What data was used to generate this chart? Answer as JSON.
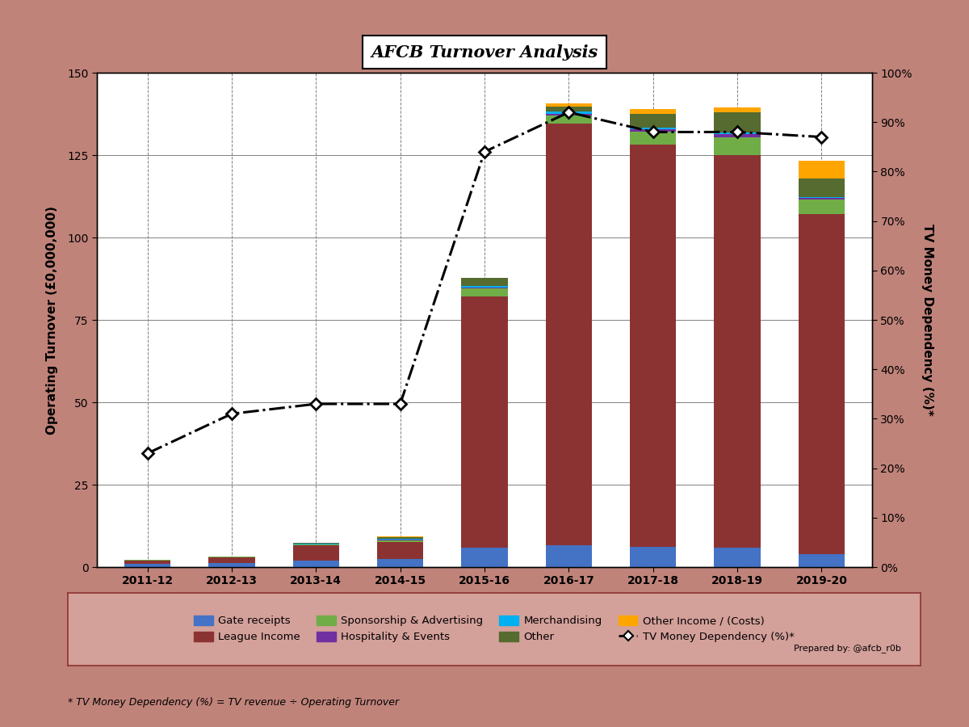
{
  "title": "AFCB Turnover Analysis",
  "years": [
    "2011-12",
    "2012-13",
    "2013-14",
    "2014-15",
    "2015-16",
    "2016-17",
    "2017-18",
    "2018-19",
    "2019-20"
  ],
  "gate_receipts": [
    1.0,
    1.2,
    2.0,
    2.5,
    6.0,
    6.5,
    6.2,
    6.0,
    4.0
  ],
  "league_income": [
    1.0,
    1.8,
    4.5,
    5.0,
    76.0,
    128.0,
    122.0,
    119.0,
    103.0
  ],
  "sponsorship_advert": [
    0.1,
    0.1,
    0.3,
    0.5,
    2.5,
    2.5,
    4.0,
    5.5,
    4.5
  ],
  "hospitality_events": [
    0.05,
    0.05,
    0.1,
    0.3,
    0.4,
    0.6,
    0.6,
    0.8,
    0.4
  ],
  "merchandising": [
    0.05,
    0.05,
    0.1,
    0.2,
    0.4,
    0.6,
    0.6,
    0.6,
    0.4
  ],
  "other": [
    0.1,
    0.1,
    0.3,
    0.5,
    2.5,
    1.5,
    4.0,
    6.0,
    5.5
  ],
  "other_income_costs": [
    0.0,
    0.0,
    0.0,
    0.3,
    0.0,
    1.0,
    1.5,
    1.5,
    5.5
  ],
  "tv_dependency_pct": [
    23.0,
    31.0,
    33.0,
    33.0,
    84.0,
    92.0,
    88.0,
    88.0,
    87.0
  ],
  "colors": {
    "gate_receipts": "#4472C4",
    "league_income": "#8B3333",
    "sponsorship_advert": "#70AD47",
    "hospitality_events": "#7030A0",
    "merchandising": "#00B0F0",
    "other": "#556B2F",
    "other_income_costs": "#FFA500"
  },
  "ylabel_left": "Operating Turnover (£0,000,000)",
  "ylabel_right": "TV Money Dependency (%)*",
  "ylim_left": [
    0,
    150
  ],
  "ylim_right": [
    0,
    100
  ],
  "yticks_left": [
    0,
    25,
    50,
    75,
    100,
    125,
    150
  ],
  "yticks_right": [
    0,
    10,
    20,
    30,
    40,
    50,
    60,
    70,
    80,
    90,
    100
  ],
  "legend_items": [
    {
      "label": "Gate receipts",
      "color": "#4472C4",
      "type": "patch"
    },
    {
      "label": "League Income",
      "color": "#8B3333",
      "type": "patch"
    },
    {
      "label": "Sponsorship & Advertising",
      "color": "#70AD47",
      "type": "patch"
    },
    {
      "label": "Hospitality & Events",
      "color": "#7030A0",
      "type": "patch"
    },
    {
      "label": "Merchandising",
      "color": "#00B0F0",
      "type": "patch"
    },
    {
      "label": "Other",
      "color": "#556B2F",
      "type": "patch"
    },
    {
      "label": "Other Income / (Costs)",
      "color": "#FFA500",
      "type": "patch"
    },
    {
      "label": "TV Money Dependency (%)*",
      "color": "#000000",
      "type": "line"
    }
  ],
  "background_outer": "#C0837A",
  "background_inner": "#FFFFFF",
  "legend_bg": "#D4A09A",
  "legend_edge": "#8B3333",
  "footnote": "* TV Money Dependency (%) = TV revenue ÷ Operating Turnover",
  "credit": "Prepared by: @afcb_r0b",
  "title_fontsize": 15,
  "axis_fontsize": 11,
  "tick_fontsize": 10,
  "legend_fontsize": 9.5
}
